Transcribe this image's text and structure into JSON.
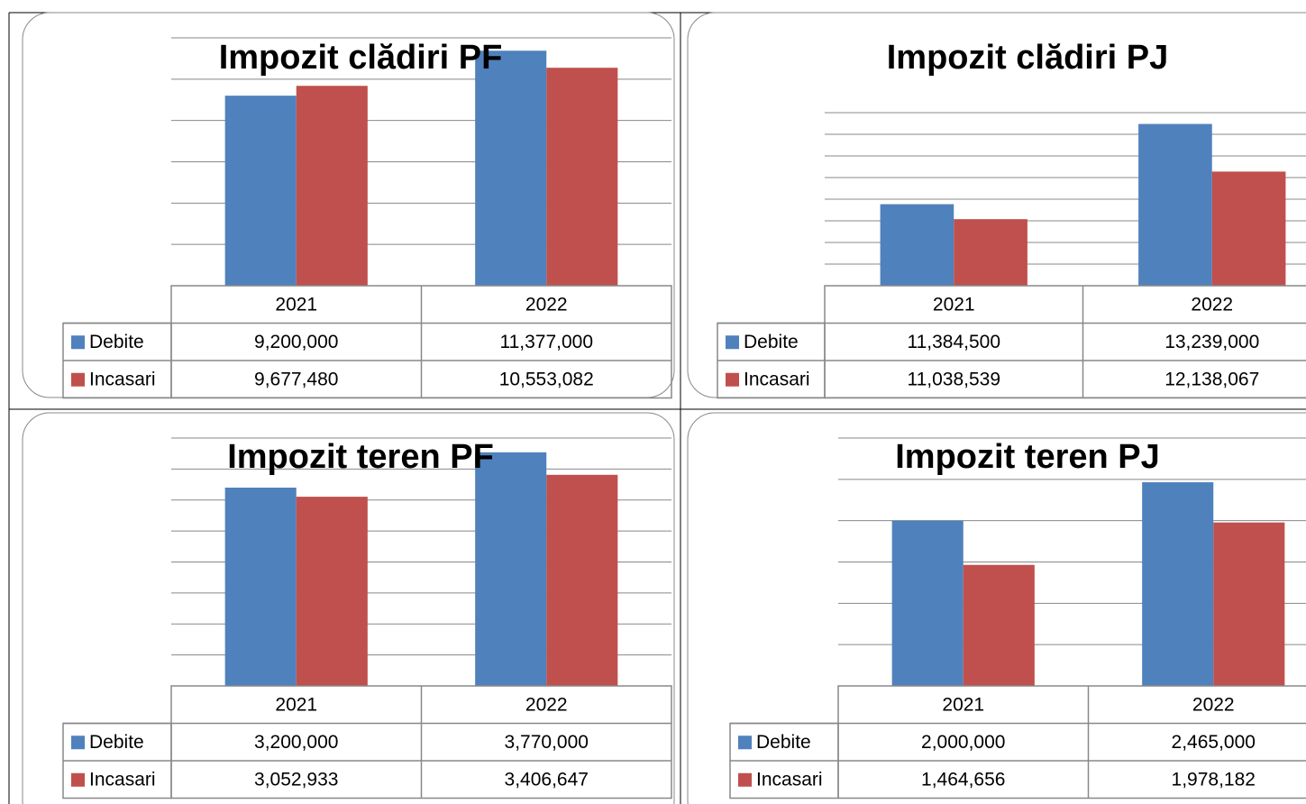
{
  "chart_data": [
    {
      "type": "bar",
      "title": "Impozit clădiri PF",
      "categories": [
        "2021",
        "2022"
      ],
      "series": [
        {
          "name": "Debite",
          "color": "#4f81bd",
          "values": [
            9200000,
            11377000
          ],
          "value_labels": [
            "9,200,000",
            "11,377,000"
          ]
        },
        {
          "name": "Incasari",
          "color": "#c0504d",
          "values": [
            9677480,
            10553082
          ],
          "value_labels": [
            "9,677,480",
            "10,553,082"
          ]
        }
      ],
      "ylim": [
        0,
        12000000
      ],
      "yticks": [
        0,
        2000000,
        4000000,
        6000000,
        8000000,
        10000000,
        12000000
      ],
      "grid": true
    },
    {
      "type": "bar",
      "title": "Impozit clădiri PJ",
      "categories": [
        "2021",
        "2022"
      ],
      "series": [
        {
          "name": "Debite",
          "color": "#4f81bd",
          "values": [
            11384500,
            13239000
          ],
          "value_labels": [
            "11,384,500",
            "13,239,000"
          ]
        },
        {
          "name": "Incasari",
          "color": "#c0504d",
          "values": [
            11038539,
            12138067
          ],
          "value_labels": [
            "11,038,539",
            "12,138,067"
          ]
        }
      ],
      "ylim": [
        9500000,
        13500000
      ],
      "yticks": [
        9500000,
        10000000,
        10500000,
        11000000,
        11500000,
        12000000,
        12500000,
        13000000,
        13500000
      ],
      "grid": true
    },
    {
      "type": "bar",
      "title": "Impozit teren PF",
      "categories": [
        "2021",
        "2022"
      ],
      "series": [
        {
          "name": "Debite",
          "color": "#4f81bd",
          "values": [
            3200000,
            3770000
          ],
          "value_labels": [
            "3,200,000",
            "3,770,000"
          ]
        },
        {
          "name": "Incasari",
          "color": "#c0504d",
          "values": [
            3052933,
            3406647
          ],
          "value_labels": [
            "3,052,933",
            "3,406,647"
          ]
        }
      ],
      "ylim": [
        0,
        4000000
      ],
      "yticks": [
        0,
        500000,
        1000000,
        1500000,
        2000000,
        2500000,
        3000000,
        3500000,
        4000000
      ],
      "grid": true
    },
    {
      "type": "bar",
      "title": "Impozit teren PJ",
      "categories": [
        "2021",
        "2022"
      ],
      "series": [
        {
          "name": "Debite",
          "color": "#4f81bd",
          "values": [
            2000000,
            2465000
          ],
          "value_labels": [
            "2,000,000",
            "2,465,000"
          ]
        },
        {
          "name": "Incasari",
          "color": "#c0504d",
          "values": [
            1464656,
            1978182
          ],
          "value_labels": [
            "1,464,656",
            "1,978,182"
          ]
        }
      ],
      "ylim": [
        0,
        3000000
      ],
      "yticks": [
        0,
        500000,
        1000000,
        1500000,
        2000000,
        2500000,
        3000000
      ],
      "grid": true
    }
  ]
}
